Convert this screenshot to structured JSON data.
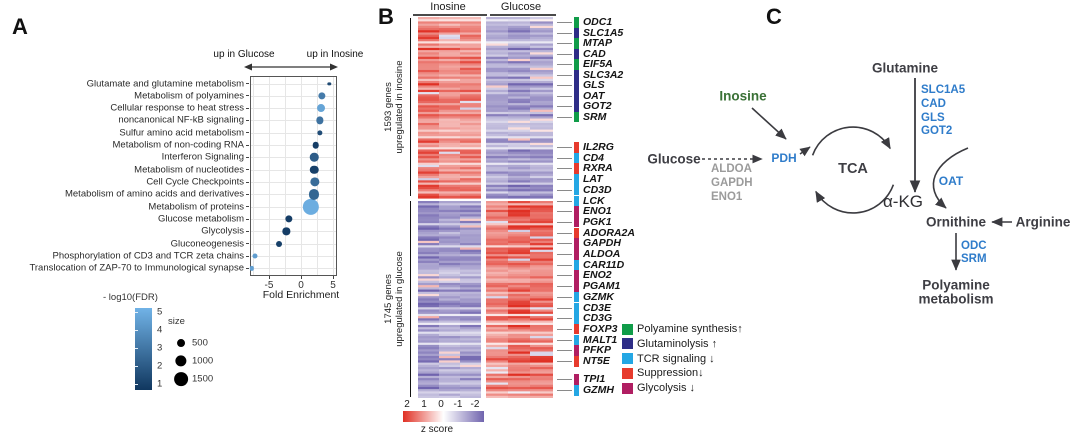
{
  "panels": {
    "a": "A",
    "b": "B",
    "c": "C"
  },
  "panel_a": {
    "direction_left": "up in Glucose",
    "direction_right": "up in Inosine",
    "xlabel": "Fold Enrichment",
    "color_legend": {
      "title": "- log10(FDR)",
      "ticks": [
        "5",
        "4",
        "3",
        "2",
        "1"
      ]
    },
    "size_legend": {
      "title": "size",
      "items": [
        {
          "label": "500",
          "size": 500
        },
        {
          "label": "1000",
          "size": 1000
        },
        {
          "label": "1500",
          "size": 1500
        }
      ]
    }
  },
  "chart_data": [
    {
      "type": "scatter",
      "title": "Pathway enrichment bubble plot",
      "xlabel": "Fold Enrichment",
      "xlim": [
        -8.3,
        5.7
      ],
      "x_ticks": [
        -5,
        0,
        5
      ],
      "grid": true,
      "color_encodes": "-log10(FDR)",
      "size_encodes": "gene set size",
      "color_range": {
        "min_value": 1,
        "max_value": 5,
        "min_color": "#10375f",
        "max_color": "#71b3e7"
      },
      "points": [
        {
          "pathway": "Glutamate and glutamine metabolism",
          "fold_enrichment": 4.4,
          "neglog10_fdr": 1.6,
          "size": 90
        },
        {
          "pathway": "Metabolism of polyamines",
          "fold_enrichment": 3.3,
          "neglog10_fdr": 3.2,
          "size": 420
        },
        {
          "pathway": "Cellular response to heat stress",
          "fold_enrichment": 3.1,
          "neglog10_fdr": 4.5,
          "size": 500
        },
        {
          "pathway": "noncanonical NF-kB signaling",
          "fold_enrichment": 2.9,
          "neglog10_fdr": 2.9,
          "size": 420
        },
        {
          "pathway": "Sulfur amino acid metabolism",
          "fold_enrichment": 2.9,
          "neglog10_fdr": 1.7,
          "size": 220
        },
        {
          "pathway": "Metabolism of non-coding RNA",
          "fold_enrichment": 2.3,
          "neglog10_fdr": 1.2,
          "size": 340
        },
        {
          "pathway": "Interferon Signaling",
          "fold_enrichment": 2.1,
          "neglog10_fdr": 2.2,
          "size": 570
        },
        {
          "pathway": "Metabolism of nucleotides",
          "fold_enrichment": 2.1,
          "neglog10_fdr": 1.3,
          "size": 570
        },
        {
          "pathway": "Cell Cycle Checkpoints",
          "fold_enrichment": 2.2,
          "neglog10_fdr": 2.7,
          "size": 680
        },
        {
          "pathway": "Metabolism of amino acids and derivatives",
          "fold_enrichment": 2.0,
          "neglog10_fdr": 2.5,
          "size": 800
        },
        {
          "pathway": "Metabolism of proteins",
          "fold_enrichment": 1.5,
          "neglog10_fdr": 4.8,
          "size": 2100
        },
        {
          "pathway": "Glucose metabolism",
          "fold_enrichment": -1.9,
          "neglog10_fdr": 1.2,
          "size": 420
        },
        {
          "pathway": "Glycolysis",
          "fold_enrichment": -2.3,
          "neglog10_fdr": 1.2,
          "size": 420
        },
        {
          "pathway": "Gluconeogenesis",
          "fold_enrichment": -3.4,
          "neglog10_fdr": 1.3,
          "size": 280
        },
        {
          "pathway": "Phosphorylation of CD3 and TCR zeta chains",
          "fold_enrichment": -7.2,
          "neglog10_fdr": 4.3,
          "size": 200
        },
        {
          "pathway": "Translocation of ZAP-70 to Immunological synapse",
          "fold_enrichment": -7.7,
          "neglog10_fdr": 4.4,
          "size": 150
        }
      ]
    },
    {
      "type": "heatmap",
      "title": "Gene expression z-score heatmap",
      "column_groups": [
        "Inosine",
        "Glucose"
      ],
      "columns_per_group": 3,
      "colorbar": {
        "ticks": [
          "2",
          "1",
          "0",
          "-1",
          "-2"
        ],
        "label": "z score",
        "positive_color": "#e03024",
        "zero_color": "#ffffff",
        "negative_color": "#7064ae"
      },
      "sections": [
        {
          "label_line1": "1593 genes",
          "label_line2": "upregulated in inosine",
          "gene_count": 1593,
          "pattern": "high z-score in Inosine columns, low in Glucose columns"
        },
        {
          "label_line1": "1745 genes",
          "label_line2": "upregulated in glucose",
          "gene_count": 1745,
          "pattern": "low z-score in Inosine columns, high in Glucose columns"
        }
      ]
    }
  ],
  "panel_b": {
    "category_colors": {
      "polyamine": "#109c49",
      "glutaminolysis": "#2e2d87",
      "tcr": "#24a7e4",
      "suppression": "#e73b2d",
      "glycolysis": "#b01e62"
    },
    "genes": [
      {
        "name": "ODC1",
        "category": "polyamine",
        "block": 0
      },
      {
        "name": "SLC1A5",
        "category": "glutaminolysis",
        "block": 0
      },
      {
        "name": "MTAP",
        "category": "polyamine",
        "block": 0
      },
      {
        "name": "CAD",
        "category": "glutaminolysis",
        "block": 0
      },
      {
        "name": "EIF5A",
        "category": "polyamine",
        "block": 0
      },
      {
        "name": "SLC3A2",
        "category": "glutaminolysis",
        "block": 0
      },
      {
        "name": "GLS",
        "category": "glutaminolysis",
        "block": 0
      },
      {
        "name": "OAT",
        "category": "glutaminolysis",
        "block": 0
      },
      {
        "name": "GOT2",
        "category": "glutaminolysis",
        "block": 0
      },
      {
        "name": "SRM",
        "category": "polyamine",
        "block": 0
      },
      {
        "name": "IL2RG",
        "category": "suppression",
        "block": 1
      },
      {
        "name": "CD4",
        "category": "tcr",
        "block": 1
      },
      {
        "name": "RXRA",
        "category": "suppression",
        "block": 1
      },
      {
        "name": "LAT",
        "category": "tcr",
        "block": 1
      },
      {
        "name": "CD3D",
        "category": "tcr",
        "block": 1
      },
      {
        "name": "LCK",
        "category": "tcr",
        "block": 1
      },
      {
        "name": "ENO1",
        "category": "glycolysis",
        "block": 1
      },
      {
        "name": "PGK1",
        "category": "glycolysis",
        "block": 1
      },
      {
        "name": "ADORA2A",
        "category": "suppression",
        "block": 1
      },
      {
        "name": "GAPDH",
        "category": "glycolysis",
        "block": 1
      },
      {
        "name": "ALDOA",
        "category": "glycolysis",
        "block": 1
      },
      {
        "name": "CAR11D",
        "category": "tcr",
        "block": 1
      },
      {
        "name": "ENO2",
        "category": "glycolysis",
        "block": 1
      },
      {
        "name": "PGAM1",
        "category": "glycolysis",
        "block": 1
      },
      {
        "name": "GZMK",
        "category": "tcr",
        "block": 1
      },
      {
        "name": "CD3E",
        "category": "tcr",
        "block": 1
      },
      {
        "name": "CD3G",
        "category": "tcr",
        "block": 1
      },
      {
        "name": "FOXP3",
        "category": "suppression",
        "block": 1
      },
      {
        "name": "MALT1",
        "category": "tcr",
        "block": 1
      },
      {
        "name": "PFKP",
        "category": "glycolysis",
        "block": 1
      },
      {
        "name": "NT5E",
        "category": "suppression",
        "block": 1
      },
      {
        "name": "TPI1",
        "category": "glycolysis",
        "block": 2
      },
      {
        "name": "GZMH",
        "category": "tcr",
        "block": 2
      }
    ],
    "legend": [
      {
        "category": "polyamine",
        "label": "Polyamine synthesis↑"
      },
      {
        "category": "glutaminolysis",
        "label": "Glutaminolysis ↑"
      },
      {
        "category": "tcr",
        "label": "TCR signaling ↓"
      },
      {
        "category": "suppression",
        "label": "Suppression↓"
      },
      {
        "category": "glycolysis",
        "label": "Glycolysis ↓"
      }
    ]
  },
  "panel_c": {
    "nodes": {
      "glutamine": "Glutamine",
      "inosine": "Inosine",
      "glucose": "Glucose",
      "pdh": "PDH",
      "tca": "TCA",
      "akg": "α-KG",
      "oat": "OAT",
      "ornithine": "Ornithine",
      "arginine": "Arginine",
      "polyamine_line1": "Polyamine",
      "polyamine_line2": "metabolism"
    },
    "glutamine_enzymes": [
      "SLC1A5",
      "CAD",
      "GLS",
      "GOT2"
    ],
    "glycolysis_enzymes": [
      "ALDOA",
      "GAPDH",
      "ENO1"
    ],
    "ornithine_enzymes": [
      "ODC",
      "SRM"
    ],
    "colors": {
      "enzyme_blue": "#2f7cca",
      "inosine_green": "#3a7136",
      "muted_gray": "#9b9b9b",
      "text_dark": "#3e3e44"
    }
  }
}
